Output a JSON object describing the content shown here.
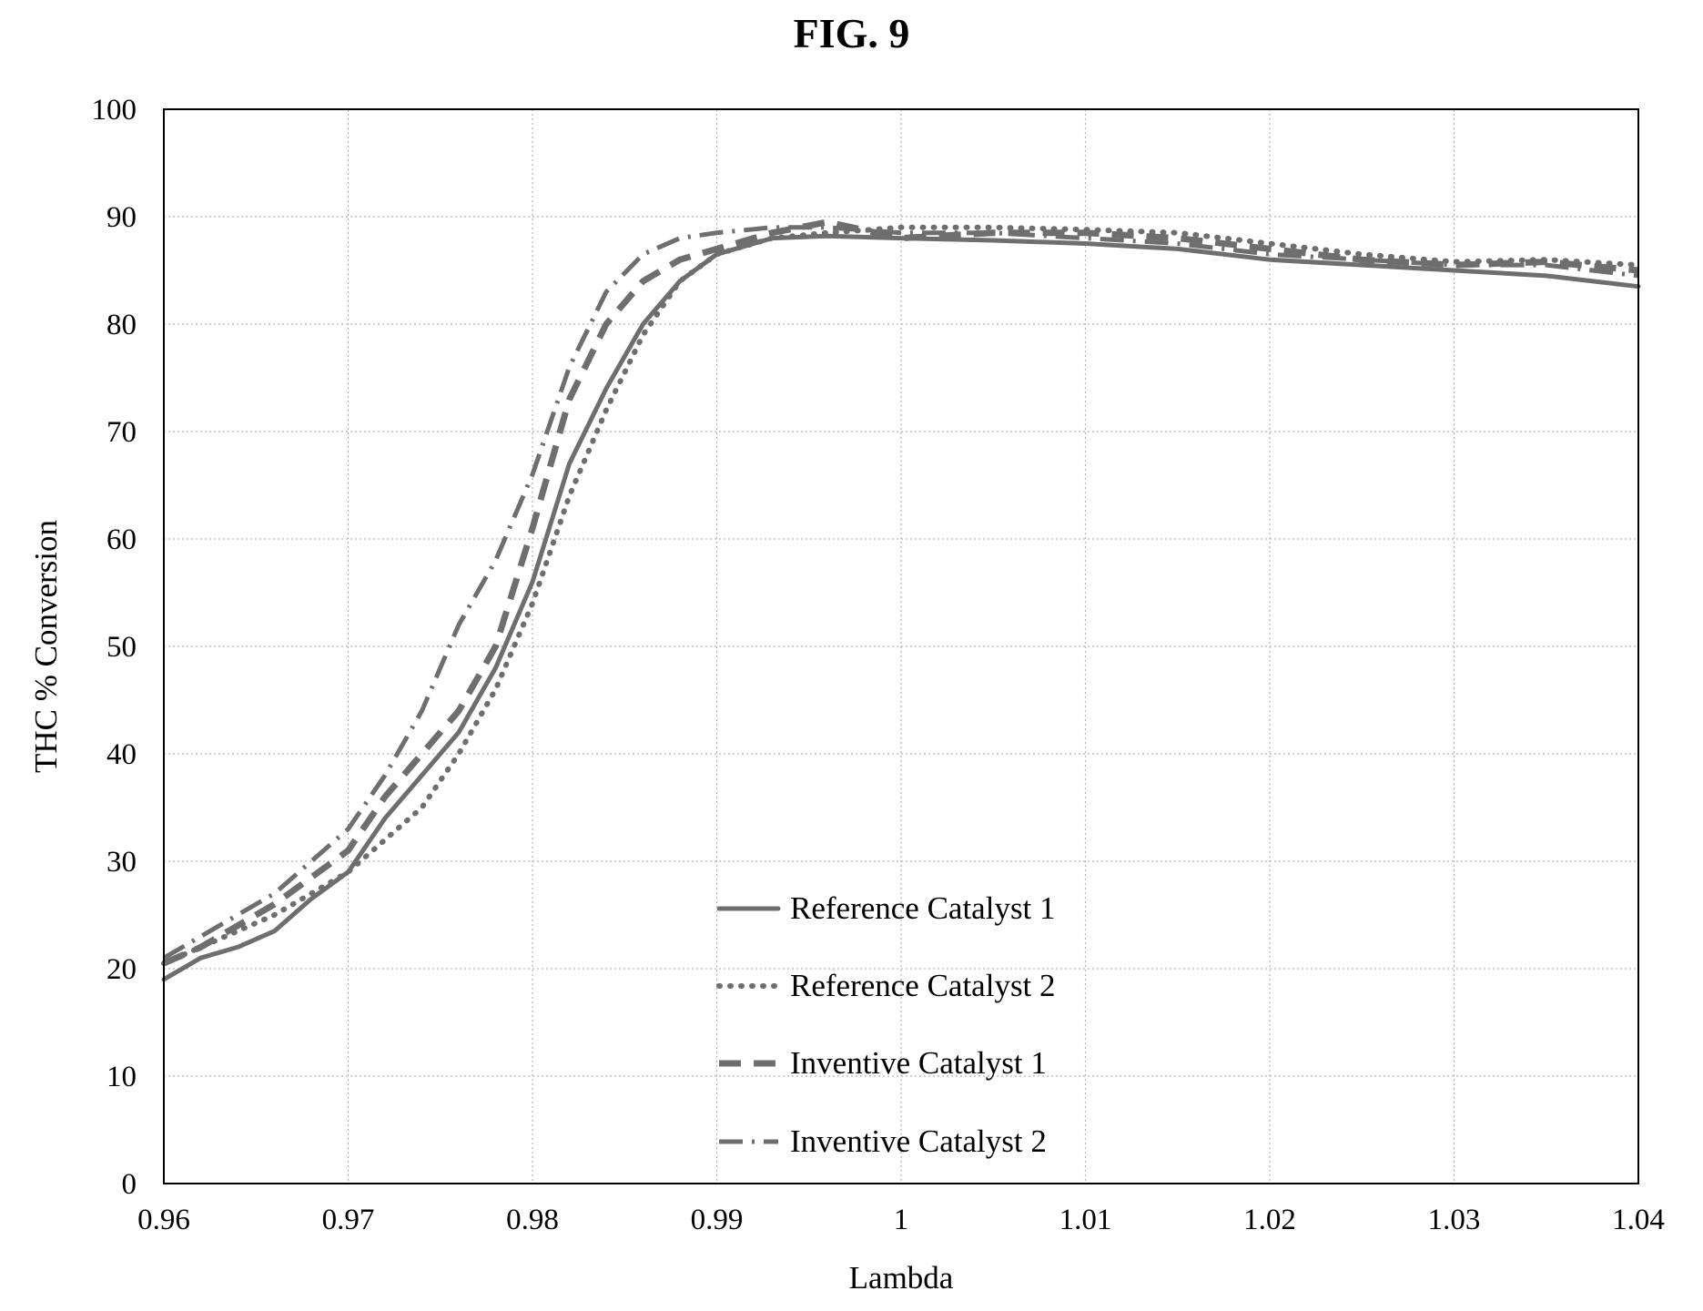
{
  "figure_title": "FIG. 9",
  "chart_data": {
    "type": "line",
    "title": "FIG. 9",
    "xlabel": "Lambda",
    "ylabel": "THC % Conversion",
    "xlim": [
      0.96,
      1.04
    ],
    "ylim": [
      0,
      100
    ],
    "xticks": [
      "0.96",
      "0.97",
      "0.98",
      "0.99",
      "1",
      "1.01",
      "1.02",
      "1.03",
      "1.04"
    ],
    "yticks": [
      "0",
      "10",
      "20",
      "30",
      "40",
      "50",
      "60",
      "70",
      "80",
      "90",
      "100"
    ],
    "grid": true,
    "legend_position": "bottom-center",
    "series": [
      {
        "name": "Reference Catalyst 1",
        "style": "solid",
        "color": "#6e6e6e",
        "x": [
          0.96,
          0.962,
          0.964,
          0.966,
          0.968,
          0.97,
          0.972,
          0.974,
          0.976,
          0.978,
          0.98,
          0.982,
          0.984,
          0.986,
          0.988,
          0.99,
          0.993,
          0.996,
          1.0,
          1.005,
          1.01,
          1.015,
          1.02,
          1.025,
          1.03,
          1.035,
          1.04
        ],
        "y": [
          19,
          21,
          22,
          23.5,
          26.5,
          29,
          34,
          38,
          42,
          48,
          56,
          67,
          74,
          80,
          84,
          86.5,
          88,
          88.2,
          88,
          87.8,
          87.5,
          87,
          86,
          85.5,
          85,
          84.5,
          83.5
        ]
      },
      {
        "name": "Reference Catalyst 2",
        "style": "dotted",
        "color": "#6e6e6e",
        "x": [
          0.96,
          0.962,
          0.964,
          0.966,
          0.968,
          0.97,
          0.972,
          0.974,
          0.976,
          0.978,
          0.98,
          0.982,
          0.984,
          0.986,
          0.988,
          0.99,
          0.993,
          0.996,
          1.0,
          1.005,
          1.01,
          1.015,
          1.02,
          1.025,
          1.03,
          1.035,
          1.04
        ],
        "y": [
          20.5,
          22,
          23.5,
          25,
          27,
          29,
          32,
          35,
          40,
          46,
          54,
          64,
          72,
          79,
          84,
          86.5,
          88,
          88.5,
          89,
          89,
          88.8,
          88.5,
          87.5,
          86.5,
          85.8,
          86,
          85.5
        ]
      },
      {
        "name": "Inventive Catalyst 1",
        "style": "dashed",
        "color": "#6e6e6e",
        "x": [
          0.96,
          0.962,
          0.964,
          0.966,
          0.968,
          0.97,
          0.972,
          0.974,
          0.976,
          0.978,
          0.98,
          0.982,
          0.984,
          0.986,
          0.988,
          0.99,
          0.993,
          0.996,
          1.0,
          1.005,
          1.01,
          1.015,
          1.02,
          1.025,
          1.03,
          1.035,
          1.04
        ],
        "y": [
          20.5,
          22,
          24,
          26,
          28.5,
          31,
          36,
          40,
          44,
          50,
          61,
          73,
          80,
          84,
          86,
          87,
          88.5,
          89.5,
          88,
          88.5,
          88.5,
          88,
          87,
          86,
          85.5,
          85.8,
          85
        ]
      },
      {
        "name": "Inventive Catalyst 2",
        "style": "dashdot",
        "color": "#6e6e6e",
        "x": [
          0.96,
          0.962,
          0.964,
          0.966,
          0.968,
          0.97,
          0.972,
          0.974,
          0.976,
          0.978,
          0.98,
          0.982,
          0.984,
          0.986,
          0.988,
          0.99,
          0.993,
          0.996,
          1.0,
          1.005,
          1.01,
          1.015,
          1.02,
          1.025,
          1.03,
          1.035,
          1.04
        ],
        "y": [
          21,
          23,
          25,
          27,
          30,
          33,
          38,
          44,
          52,
          58,
          66,
          76,
          83,
          86.5,
          88,
          88.5,
          89,
          89,
          88.5,
          88.5,
          88,
          87.5,
          86.5,
          86,
          85.5,
          85.5,
          84.5
        ]
      }
    ]
  }
}
